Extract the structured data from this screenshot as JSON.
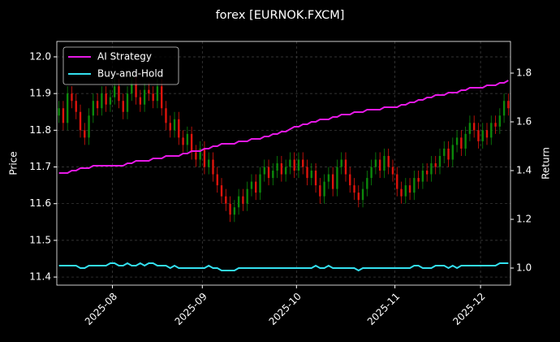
{
  "chart_data": {
    "type": "candlestick",
    "title": "forex [EURNOK.FXCM]",
    "ylabel": "Price",
    "y2label": "Return",
    "xlim": [
      -0.5,
      105.5
    ],
    "xticks": [
      {
        "value": 12.5,
        "label": "2025-08"
      },
      {
        "value": 33.5,
        "label": "2025-09"
      },
      {
        "value": 55.5,
        "label": "2025-10"
      },
      {
        "value": 78.5,
        "label": "2025-11"
      },
      {
        "value": 98.5,
        "label": "2025-12"
      }
    ],
    "ylim": [
      11.378,
      12.042
    ],
    "yticks": [
      11.4,
      11.5,
      11.6,
      11.7,
      11.8,
      11.9,
      {
        "value": 12,
        "label": "12.0"
      }
    ],
    "y2lim": [
      0.93,
      1.93
    ],
    "y2ticks": [
      {
        "value": 1,
        "label": "1.0"
      },
      1.2,
      1.4,
      1.6,
      1.8
    ],
    "grid": true,
    "legend": "upper-left",
    "up_color": "#0b8a0b",
    "down_color": "#e0140c",
    "candles": {
      "open": [
        11.84,
        11.86,
        11.82,
        11.9,
        11.88,
        11.85,
        11.8,
        11.78,
        11.84,
        11.88,
        11.86,
        11.9,
        11.87,
        11.89,
        11.92,
        11.88,
        11.85,
        11.9,
        11.93,
        11.89,
        11.87,
        11.91,
        11.9,
        11.88,
        11.92,
        11.86,
        11.82,
        11.8,
        11.83,
        11.78,
        11.76,
        11.79,
        11.74,
        11.72,
        11.75,
        11.7,
        11.72,
        11.68,
        11.65,
        11.62,
        11.6,
        11.57,
        11.59,
        11.62,
        11.6,
        11.64,
        11.66,
        11.63,
        11.68,
        11.7,
        11.67,
        11.69,
        11.71,
        11.68,
        11.7,
        11.72,
        11.69,
        11.72,
        11.7,
        11.67,
        11.69,
        11.65,
        11.62,
        11.66,
        11.68,
        11.64,
        11.7,
        11.72,
        11.68,
        11.65,
        11.63,
        11.61,
        11.64,
        11.67,
        11.7,
        11.72,
        11.69,
        11.73,
        11.7,
        11.68,
        11.64,
        11.62,
        11.65,
        11.63,
        11.67,
        11.66,
        11.69,
        11.68,
        11.71,
        11.7,
        11.73,
        11.75,
        11.72,
        11.76,
        11.78,
        11.75,
        11.79,
        11.82,
        11.8,
        11.77,
        11.8,
        11.78,
        11.82,
        11.81,
        11.84,
        11.88
      ],
      "high": [
        11.88,
        11.88,
        11.92,
        11.92,
        11.9,
        11.87,
        11.82,
        11.86,
        11.9,
        11.9,
        11.92,
        11.92,
        11.91,
        11.94,
        11.94,
        11.9,
        11.92,
        11.95,
        11.95,
        11.91,
        11.93,
        11.93,
        11.92,
        11.94,
        11.94,
        11.88,
        11.84,
        11.85,
        11.85,
        11.8,
        11.81,
        11.81,
        11.76,
        11.77,
        11.77,
        11.74,
        11.74,
        11.7,
        11.67,
        11.64,
        11.62,
        11.61,
        11.64,
        11.64,
        11.66,
        11.68,
        11.68,
        11.7,
        11.72,
        11.72,
        11.71,
        11.73,
        11.73,
        11.72,
        11.74,
        11.74,
        11.74,
        11.74,
        11.72,
        11.71,
        11.71,
        11.67,
        11.68,
        11.7,
        11.7,
        11.72,
        11.74,
        11.74,
        11.7,
        11.67,
        11.65,
        11.66,
        11.69,
        11.72,
        11.74,
        11.74,
        11.75,
        11.75,
        11.72,
        11.7,
        11.66,
        11.67,
        11.67,
        11.69,
        11.69,
        11.71,
        11.71,
        11.73,
        11.73,
        11.75,
        11.77,
        11.77,
        11.78,
        11.8,
        11.8,
        11.81,
        11.84,
        11.84,
        11.82,
        11.82,
        11.82,
        11.84,
        11.84,
        11.86,
        11.9,
        11.9
      ],
      "low": [
        11.82,
        11.8,
        11.8,
        11.86,
        11.83,
        11.78,
        11.76,
        11.76,
        11.82,
        11.84,
        11.84,
        11.85,
        11.85,
        11.87,
        11.86,
        11.83,
        11.83,
        11.88,
        11.87,
        11.85,
        11.85,
        11.88,
        11.86,
        11.86,
        11.84,
        11.8,
        11.78,
        11.78,
        11.76,
        11.74,
        11.74,
        11.72,
        11.7,
        11.7,
        11.68,
        11.68,
        11.66,
        11.63,
        11.6,
        11.58,
        11.55,
        11.55,
        11.57,
        11.58,
        11.58,
        11.62,
        11.61,
        11.61,
        11.66,
        11.65,
        11.65,
        11.67,
        11.66,
        11.66,
        11.68,
        11.67,
        11.67,
        11.68,
        11.65,
        11.65,
        11.63,
        11.6,
        11.6,
        11.64,
        11.62,
        11.62,
        11.68,
        11.66,
        11.63,
        11.61,
        11.59,
        11.59,
        11.62,
        11.65,
        11.68,
        11.67,
        11.67,
        11.68,
        11.66,
        11.62,
        11.6,
        11.6,
        11.61,
        11.61,
        11.64,
        11.64,
        11.66,
        11.66,
        11.68,
        11.68,
        11.71,
        11.7,
        11.7,
        11.74,
        11.73,
        11.73,
        11.77,
        11.78,
        11.75,
        11.75,
        11.76,
        11.76,
        11.79,
        11.79,
        11.82,
        11.84
      ],
      "close": [
        11.86,
        11.82,
        11.9,
        11.88,
        11.85,
        11.8,
        11.78,
        11.84,
        11.88,
        11.86,
        11.9,
        11.87,
        11.89,
        11.92,
        11.88,
        11.85,
        11.9,
        11.93,
        11.89,
        11.87,
        11.91,
        11.9,
        11.88,
        11.92,
        11.86,
        11.82,
        11.8,
        11.83,
        11.78,
        11.76,
        11.79,
        11.74,
        11.72,
        11.75,
        11.7,
        11.72,
        11.68,
        11.65,
        11.62,
        11.6,
        11.57,
        11.59,
        11.62,
        11.6,
        11.64,
        11.66,
        11.63,
        11.68,
        11.7,
        11.67,
        11.69,
        11.71,
        11.68,
        11.7,
        11.72,
        11.69,
        11.72,
        11.7,
        11.67,
        11.69,
        11.65,
        11.62,
        11.66,
        11.68,
        11.64,
        11.7,
        11.72,
        11.68,
        11.65,
        11.63,
        11.61,
        11.64,
        11.67,
        11.7,
        11.72,
        11.69,
        11.73,
        11.7,
        11.68,
        11.64,
        11.62,
        11.65,
        11.63,
        11.67,
        11.66,
        11.69,
        11.68,
        11.71,
        11.7,
        11.73,
        11.75,
        11.72,
        11.76,
        11.78,
        11.75,
        11.79,
        11.82,
        11.8,
        11.77,
        11.8,
        11.78,
        11.82,
        11.81,
        11.84,
        11.88,
        11.86
      ]
    },
    "series": [
      {
        "name": "AI Strategy",
        "color": "#e619e6",
        "axis": "y2",
        "values": [
          1.39,
          1.39,
          1.39,
          1.4,
          1.4,
          1.41,
          1.41,
          1.41,
          1.42,
          1.42,
          1.42,
          1.42,
          1.42,
          1.42,
          1.42,
          1.42,
          1.43,
          1.43,
          1.44,
          1.44,
          1.44,
          1.44,
          1.45,
          1.45,
          1.45,
          1.46,
          1.46,
          1.46,
          1.46,
          1.47,
          1.47,
          1.48,
          1.48,
          1.48,
          1.49,
          1.49,
          1.5,
          1.5,
          1.51,
          1.51,
          1.51,
          1.51,
          1.52,
          1.52,
          1.52,
          1.53,
          1.53,
          1.53,
          1.54,
          1.54,
          1.55,
          1.55,
          1.56,
          1.56,
          1.57,
          1.58,
          1.58,
          1.59,
          1.59,
          1.6,
          1.6,
          1.61,
          1.61,
          1.61,
          1.62,
          1.62,
          1.63,
          1.63,
          1.63,
          1.64,
          1.64,
          1.64,
          1.65,
          1.65,
          1.65,
          1.65,
          1.66,
          1.66,
          1.66,
          1.66,
          1.67,
          1.67,
          1.68,
          1.68,
          1.69,
          1.69,
          1.7,
          1.7,
          1.71,
          1.71,
          1.71,
          1.72,
          1.72,
          1.72,
          1.73,
          1.73,
          1.74,
          1.74,
          1.74,
          1.74,
          1.75,
          1.75,
          1.75,
          1.76,
          1.76,
          1.77
        ]
      },
      {
        "name": "Buy-and-Hold",
        "color": "#33e0f0",
        "axis": "y2",
        "values": [
          1.01,
          1.01,
          1.01,
          1.01,
          1.01,
          1.0,
          1.0,
          1.01,
          1.01,
          1.01,
          1.01,
          1.01,
          1.02,
          1.02,
          1.01,
          1.01,
          1.02,
          1.01,
          1.01,
          1.02,
          1.01,
          1.02,
          1.02,
          1.01,
          1.01,
          1.01,
          1.0,
          1.01,
          1.0,
          1.0,
          1.0,
          1.0,
          1.0,
          1.0,
          1.0,
          1.01,
          1.0,
          1.0,
          0.99,
          0.99,
          0.99,
          0.99,
          1.0,
          1.0,
          1.0,
          1.0,
          1.0,
          1.0,
          1.0,
          1.0,
          1.0,
          1.0,
          1.0,
          1.0,
          1.0,
          1.0,
          1.0,
          1.0,
          1.0,
          1.0,
          1.01,
          1.0,
          1.0,
          1.01,
          1.0,
          1.0,
          1.0,
          1.0,
          1.0,
          1.0,
          0.99,
          1.0,
          1.0,
          1.0,
          1.0,
          1.0,
          1.0,
          1.0,
          1.0,
          1.0,
          1.0,
          1.0,
          1.0,
          1.01,
          1.01,
          1.0,
          1.0,
          1.0,
          1.01,
          1.01,
          1.01,
          1.0,
          1.01,
          1.0,
          1.01,
          1.01,
          1.01,
          1.01,
          1.01,
          1.01,
          1.01,
          1.01,
          1.01,
          1.02,
          1.02,
          1.02
        ]
      }
    ]
  }
}
